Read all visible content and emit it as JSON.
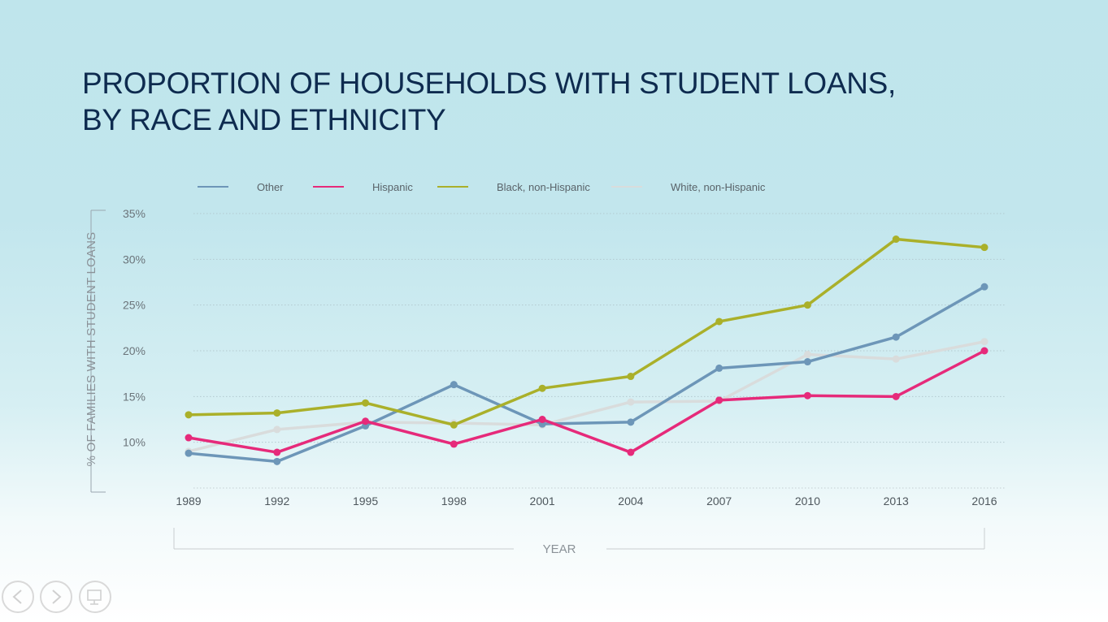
{
  "slide": {
    "title_line1": "PROPORTION OF HOUSEHOLDS WITH STUDENT LOANS,",
    "title_line2": "BY RACE AND ETHNICITY"
  },
  "chart_data": {
    "type": "line",
    "title": "PROPORTION OF HOUSEHOLDS WITH STUDENT LOANS, BY RACE AND ETHNICITY",
    "xlabel": "YEAR",
    "ylabel": "% OF FAMILIES WITH STUDENT LOANS",
    "x": [
      "1989",
      "1992",
      "1995",
      "1998",
      "2001",
      "2004",
      "2007",
      "2010",
      "2013",
      "2016"
    ],
    "yticks": [
      "35%",
      "30%",
      "25%",
      "20%",
      "15%",
      "10%"
    ],
    "ylim": [
      5,
      35
    ],
    "grid": true,
    "legend_position": "top",
    "series": [
      {
        "name": "Other",
        "color": "#6d96b8",
        "values": [
          8.8,
          7.9,
          11.8,
          16.3,
          12.0,
          12.2,
          18.1,
          18.8,
          21.5,
          27.0
        ]
      },
      {
        "name": "Hispanic",
        "color": "#e62a7a",
        "values": [
          10.5,
          8.9,
          12.3,
          9.8,
          12.5,
          8.9,
          14.6,
          15.1,
          15.0,
          20.0
        ]
      },
      {
        "name": "Black, non-Hispanic",
        "color": "#aab02a",
        "values": [
          13.0,
          13.2,
          14.3,
          11.9,
          15.9,
          17.2,
          23.2,
          25.0,
          32.2,
          31.3
        ]
      },
      {
        "name": "White, non-Hispanic",
        "color": "#d9dcdc",
        "values": [
          9.0,
          11.4,
          12.2,
          12.1,
          11.9,
          14.4,
          14.5,
          19.6,
          19.1,
          21.0
        ]
      }
    ]
  },
  "nav": {
    "prev_icon": "prev-arrow-icon",
    "next_icon": "next-arrow-icon",
    "menu_icon": "slide-menu-icon"
  }
}
